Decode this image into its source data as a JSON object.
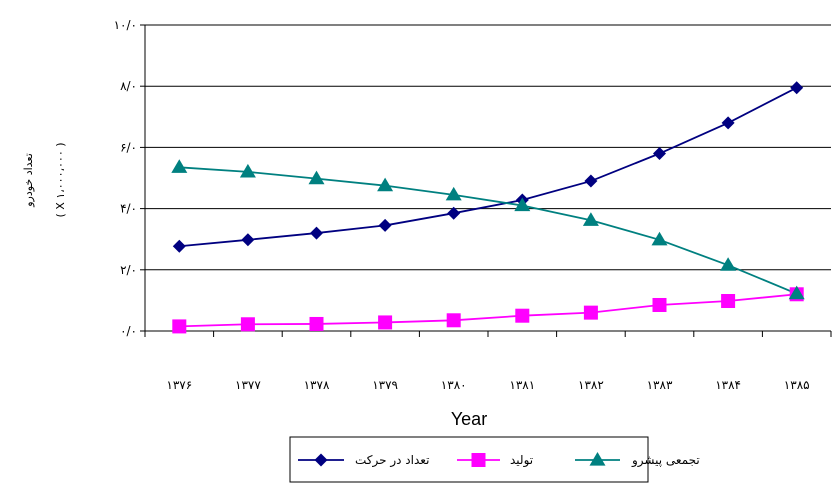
{
  "chart_data": {
    "type": "line",
    "title": "",
    "categories": [
      "۱۳۷۶",
      "۱۳۷۷",
      "۱۳۷۸",
      "۱۳۷۹",
      "۱۳۸۰",
      "۱۳۸۱",
      "۱۳۸۲",
      "۱۳۸۳",
      "۱۳۸۴",
      "۱۳۸۵"
    ],
    "xlabel": "Year",
    "ylabel_main": "تعداد خودرو",
    "ylabel_unit": "( X ۱،۰۰۰،۰۰۰ )",
    "ylim": [
      0,
      10
    ],
    "yticks": [
      0,
      2,
      4,
      6,
      8,
      10
    ],
    "ytick_labels": [
      "۰/۰",
      "۲/۰",
      "۴/۰",
      "۶/۰",
      "۸/۰",
      "۱۰/۰"
    ],
    "grid": "horizontal",
    "legend_position": "bottom",
    "series": [
      {
        "name": "تعداد در حرکت",
        "color": "#000080",
        "marker": "diamond",
        "values": [
          2.77,
          2.98,
          3.2,
          3.45,
          3.85,
          4.28,
          4.9,
          5.8,
          6.8,
          7.95
        ]
      },
      {
        "name": "تولید",
        "color": "#FF00FF",
        "marker": "square",
        "values": [
          0.15,
          0.22,
          0.23,
          0.28,
          0.35,
          0.5,
          0.6,
          0.85,
          0.98,
          1.2
        ]
      },
      {
        "name": "تجمعی پیشرو",
        "color": "#008080",
        "marker": "triangle",
        "values": [
          5.35,
          5.2,
          4.98,
          4.75,
          4.45,
          4.1,
          3.62,
          2.98,
          2.15,
          1.22
        ]
      }
    ]
  }
}
